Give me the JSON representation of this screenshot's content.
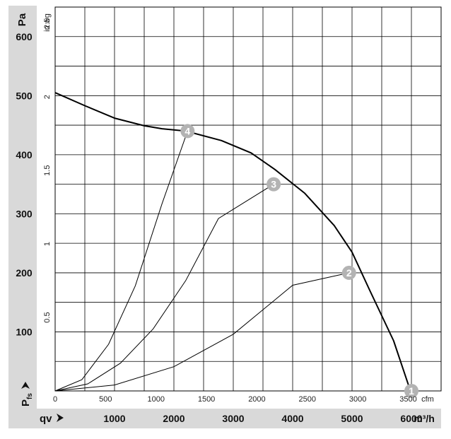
{
  "chart_data": {
    "type": "line",
    "title": "",
    "ylabel_primary": "Pa",
    "ylabel_secondary": "in wg",
    "y_symbol": "P",
    "y_symbol_subscript": "fs",
    "x_symbol": "qv",
    "xlabel_primary": "m³/h",
    "xlabel_secondary": "cfm",
    "xlim": [
      0,
      6500
    ],
    "ylim": [
      0,
      650
    ],
    "x_ticks_primary": [
      "1000",
      "2000",
      "3000",
      "4000",
      "5000",
      "6000"
    ],
    "x_ticks_secondary": [
      "0",
      "500",
      "1000",
      "1500",
      "2000",
      "2500",
      "3000",
      "3500"
    ],
    "y_ticks_primary": [
      "100",
      "200",
      "300",
      "400",
      "500",
      "600"
    ],
    "y_ticks_secondary": [
      "0.5",
      "1",
      "1.5",
      "2",
      "2.5"
    ],
    "grid": true,
    "fan_curve": {
      "x": [
        0,
        500,
        1000,
        1500,
        1800,
        2200,
        2800,
        3300,
        3700,
        4200,
        4700,
        5000,
        5300,
        5700,
        5950,
        6000
      ],
      "y": [
        505,
        483,
        462,
        449,
        444,
        440,
        424,
        403,
        375,
        335,
        280,
        235,
        170,
        85,
        10,
        0
      ]
    },
    "system_curves": [
      {
        "x": [
          0,
          450,
          900,
          1350,
          1800,
          2230
        ],
        "y": [
          0,
          19,
          79,
          178,
          317,
          440
        ]
      },
      {
        "x": [
          0,
          550,
          1100,
          1650,
          2200,
          2750,
          3680
        ],
        "y": [
          0,
          12,
          47,
          105,
          187,
          292,
          350
        ]
      },
      {
        "x": [
          0,
          1000,
          2000,
          3000,
          4000,
          4950
        ],
        "y": [
          0,
          10,
          41,
          96,
          179,
          200
        ]
      }
    ],
    "operating_points": [
      {
        "label": "1",
        "x": 6000,
        "y": 0
      },
      {
        "label": "2",
        "x": 4950,
        "y": 200
      },
      {
        "label": "3",
        "x": 3680,
        "y": 350
      },
      {
        "label": "4",
        "x": 2230,
        "y": 440
      }
    ],
    "colors": {
      "axis_band": "#d9d9d9",
      "grid": "#000000",
      "curve": "#000000",
      "marker_fill": "#b3b3b3",
      "marker_text": "#ffffff"
    }
  }
}
